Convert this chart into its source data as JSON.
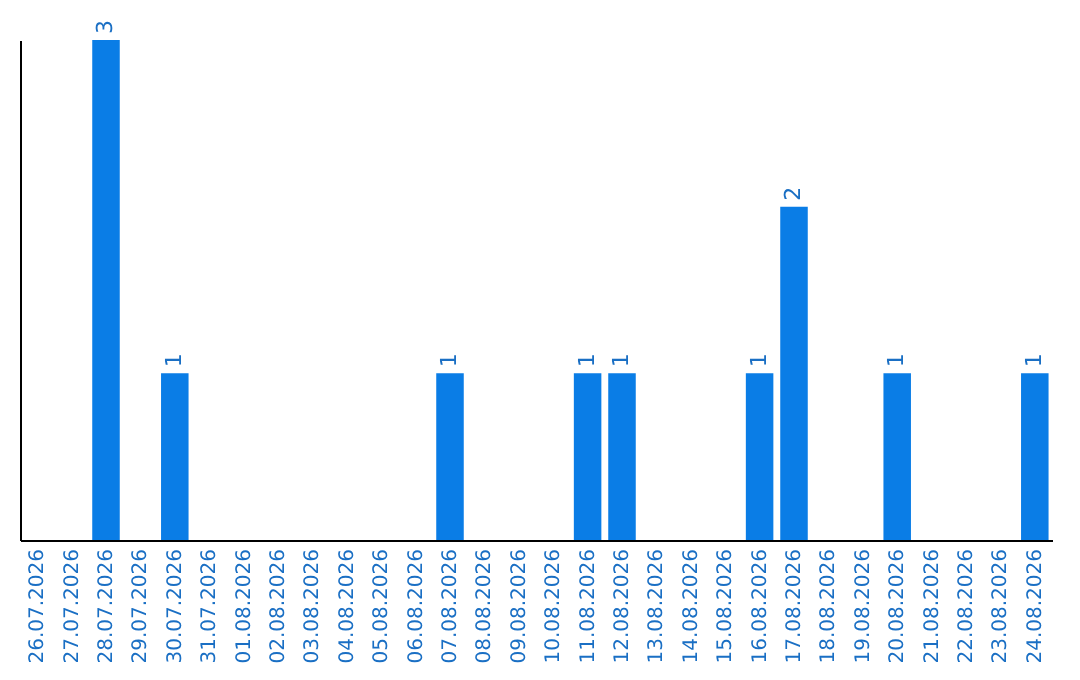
{
  "chart_data": {
    "type": "bar",
    "categories": [
      "26.07.2026",
      "27.07.2026",
      "28.07.2026",
      "29.07.2026",
      "30.07.2026",
      "31.07.2026",
      "01.08.2026",
      "02.08.2026",
      "03.08.2026",
      "04.08.2026",
      "05.08.2026",
      "06.08.2026",
      "07.08.2026",
      "08.08.2026",
      "09.08.2026",
      "10.08.2026",
      "11.08.2026",
      "12.08.2026",
      "13.08.2026",
      "14.08.2026",
      "15.08.2026",
      "16.08.2026",
      "17.08.2026",
      "18.08.2026",
      "19.08.2026",
      "20.08.2026",
      "21.08.2026",
      "22.08.2026",
      "23.08.2026",
      "24.08.2026"
    ],
    "values": [
      0,
      0,
      3,
      0,
      1,
      0,
      0,
      0,
      0,
      0,
      0,
      0,
      1,
      0,
      0,
      0,
      1,
      1,
      0,
      0,
      0,
      1,
      2,
      0,
      0,
      1,
      0,
      0,
      0,
      1
    ],
    "value_labels": [
      null,
      null,
      "3",
      null,
      "1",
      null,
      null,
      null,
      null,
      null,
      null,
      null,
      "1",
      null,
      null,
      null,
      "1",
      "1",
      null,
      null,
      null,
      "1",
      "2",
      null,
      null,
      "1",
      null,
      null,
      null,
      "1"
    ],
    "color": "#0a7de6",
    "grid": false,
    "tick_labels": "x"
  }
}
